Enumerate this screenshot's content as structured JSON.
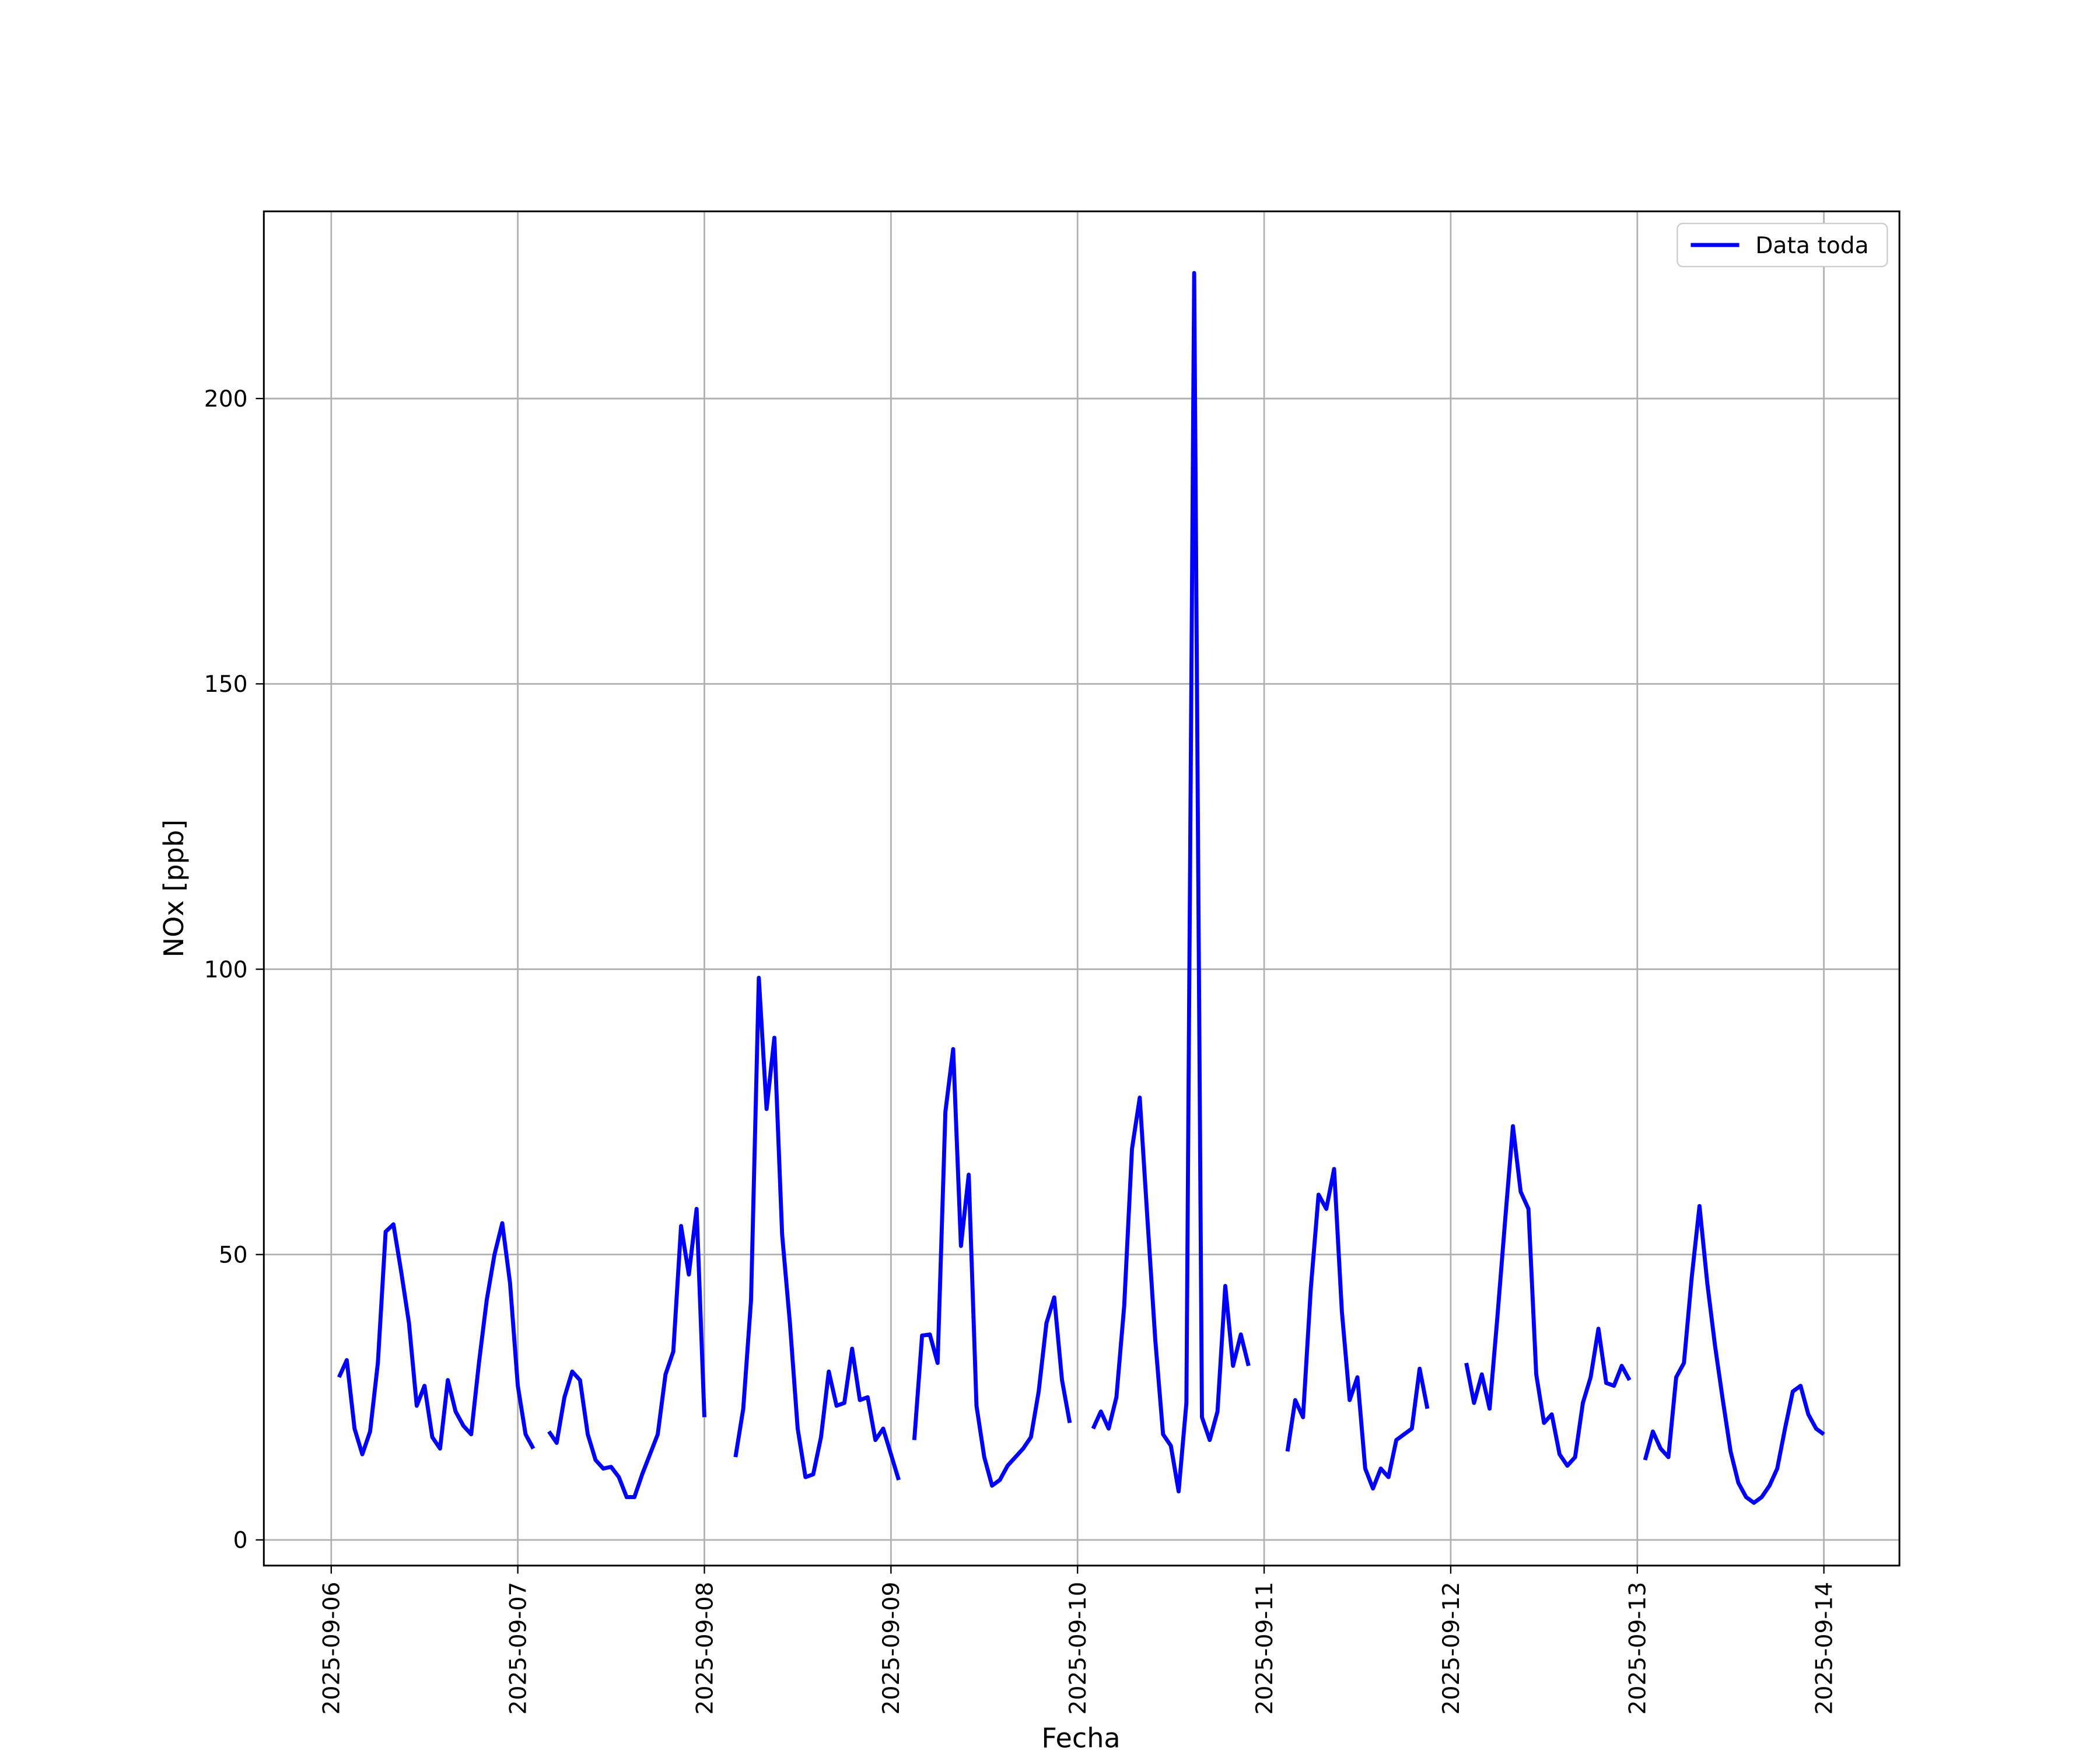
{
  "chart_data": {
    "type": "line",
    "xlabel": "Fecha",
    "ylabel": "NOx [ppb]",
    "x": [
      "2025-09-06 01:00",
      "2025-09-06 02:00",
      "2025-09-06 03:00",
      "2025-09-06 04:00",
      "2025-09-06 05:00",
      "2025-09-06 06:00",
      "2025-09-06 07:00",
      "2025-09-06 08:00",
      "2025-09-06 09:00",
      "2025-09-06 10:00",
      "2025-09-06 11:00",
      "2025-09-06 12:00",
      "2025-09-06 13:00",
      "2025-09-06 14:00",
      "2025-09-06 15:00",
      "2025-09-06 16:00",
      "2025-09-06 17:00",
      "2025-09-06 18:00",
      "2025-09-06 19:00",
      "2025-09-06 20:00",
      "2025-09-06 21:00",
      "2025-09-06 22:00",
      "2025-09-06 23:00",
      "2025-09-07 00:00",
      "2025-09-07 01:00",
      "2025-09-07 02:00",
      "2025-09-07 03:00",
      "2025-09-07 04:00",
      "2025-09-07 05:00",
      "2025-09-07 06:00",
      "2025-09-07 07:00",
      "2025-09-07 08:00",
      "2025-09-07 09:00",
      "2025-09-07 10:00",
      "2025-09-07 11:00",
      "2025-09-07 12:00",
      "2025-09-07 13:00",
      "2025-09-07 14:00",
      "2025-09-07 15:00",
      "2025-09-07 16:00",
      "2025-09-07 17:00",
      "2025-09-07 18:00",
      "2025-09-07 19:00",
      "2025-09-07 20:00",
      "2025-09-07 21:00",
      "2025-09-07 22:00",
      "2025-09-07 23:00",
      "2025-09-08 00:00",
      "2025-09-08 01:00",
      "2025-09-08 02:00",
      "2025-09-08 03:00",
      "2025-09-08 04:00",
      "2025-09-08 05:00",
      "2025-09-08 06:00",
      "2025-09-08 07:00",
      "2025-09-08 08:00",
      "2025-09-08 09:00",
      "2025-09-08 10:00",
      "2025-09-08 11:00",
      "2025-09-08 12:00",
      "2025-09-08 13:00",
      "2025-09-08 14:00",
      "2025-09-08 15:00",
      "2025-09-08 16:00",
      "2025-09-08 17:00",
      "2025-09-08 18:00",
      "2025-09-08 19:00",
      "2025-09-08 20:00",
      "2025-09-08 21:00",
      "2025-09-08 22:00",
      "2025-09-08 23:00",
      "2025-09-09 00:00",
      "2025-09-09 01:00",
      "2025-09-09 02:00",
      "2025-09-09 03:00",
      "2025-09-09 04:00",
      "2025-09-09 05:00",
      "2025-09-09 06:00",
      "2025-09-09 07:00",
      "2025-09-09 08:00",
      "2025-09-09 09:00",
      "2025-09-09 10:00",
      "2025-09-09 11:00",
      "2025-09-09 12:00",
      "2025-09-09 13:00",
      "2025-09-09 14:00",
      "2025-09-09 15:00",
      "2025-09-09 16:00",
      "2025-09-09 17:00",
      "2025-09-09 18:00",
      "2025-09-09 19:00",
      "2025-09-09 20:00",
      "2025-09-09 21:00",
      "2025-09-09 22:00",
      "2025-09-09 23:00",
      "2025-09-10 00:00",
      "2025-09-10 01:00",
      "2025-09-10 02:00",
      "2025-09-10 03:00",
      "2025-09-10 04:00",
      "2025-09-10 05:00",
      "2025-09-10 06:00",
      "2025-09-10 07:00",
      "2025-09-10 08:00",
      "2025-09-10 09:00",
      "2025-09-10 10:00",
      "2025-09-10 11:00",
      "2025-09-10 12:00",
      "2025-09-10 13:00",
      "2025-09-10 14:00",
      "2025-09-10 15:00",
      "2025-09-10 16:00",
      "2025-09-10 17:00",
      "2025-09-10 18:00",
      "2025-09-10 19:00",
      "2025-09-10 20:00",
      "2025-09-10 21:00",
      "2025-09-10 22:00",
      "2025-09-10 23:00",
      "2025-09-11 00:00",
      "2025-09-11 01:00",
      "2025-09-11 02:00",
      "2025-09-11 03:00",
      "2025-09-11 04:00",
      "2025-09-11 05:00",
      "2025-09-11 06:00",
      "2025-09-11 07:00",
      "2025-09-11 08:00",
      "2025-09-11 09:00",
      "2025-09-11 10:00",
      "2025-09-11 11:00",
      "2025-09-11 12:00",
      "2025-09-11 13:00",
      "2025-09-11 14:00",
      "2025-09-11 15:00",
      "2025-09-11 16:00",
      "2025-09-11 17:00",
      "2025-09-11 18:00",
      "2025-09-11 19:00",
      "2025-09-11 20:00",
      "2025-09-11 21:00",
      "2025-09-11 22:00",
      "2025-09-11 23:00",
      "2025-09-12 00:00",
      "2025-09-12 01:00",
      "2025-09-12 02:00",
      "2025-09-12 03:00",
      "2025-09-12 04:00",
      "2025-09-12 05:00",
      "2025-09-12 06:00",
      "2025-09-12 07:00",
      "2025-09-12 08:00",
      "2025-09-12 09:00",
      "2025-09-12 10:00",
      "2025-09-12 11:00",
      "2025-09-12 12:00",
      "2025-09-12 13:00",
      "2025-09-12 14:00",
      "2025-09-12 15:00",
      "2025-09-12 16:00",
      "2025-09-12 17:00",
      "2025-09-12 18:00",
      "2025-09-12 19:00",
      "2025-09-12 20:00",
      "2025-09-12 21:00",
      "2025-09-12 22:00",
      "2025-09-12 23:00",
      "2025-09-13 00:00",
      "2025-09-13 01:00",
      "2025-09-13 02:00",
      "2025-09-13 03:00",
      "2025-09-13 04:00",
      "2025-09-13 05:00",
      "2025-09-13 06:00",
      "2025-09-13 07:00",
      "2025-09-13 08:00",
      "2025-09-13 09:00",
      "2025-09-13 10:00",
      "2025-09-13 11:00",
      "2025-09-13 12:00",
      "2025-09-13 13:00",
      "2025-09-13 14:00",
      "2025-09-13 15:00",
      "2025-09-13 16:00",
      "2025-09-13 17:00",
      "2025-09-13 18:00",
      "2025-09-13 19:00",
      "2025-09-13 20:00",
      "2025-09-13 21:00",
      "2025-09-13 22:00",
      "2025-09-13 23:00",
      "2025-09-14 00:00"
    ],
    "series": [
      {
        "name": "Data toda",
        "color": "#0000ff",
        "values": [
          28.5,
          31.5,
          19.5,
          15,
          19,
          31,
          54,
          55.3,
          47,
          38,
          23.5,
          27,
          18,
          16,
          28,
          22.5,
          20,
          18.5,
          31,
          42,
          50,
          55.5,
          45,
          27,
          18.5,
          16,
          null,
          19,
          17,
          25,
          29.5,
          28,
          18.5,
          14,
          12.5,
          12.8,
          11,
          7.5,
          7.5,
          11.5,
          15,
          18.5,
          29,
          33,
          55,
          46.5,
          58,
          21.5,
          null,
          null,
          null,
          14.5,
          23,
          42,
          98.5,
          75.5,
          88,
          53.5,
          38,
          19.5,
          11,
          11.5,
          18,
          29.5,
          23.5,
          24,
          33.5,
          24.5,
          25,
          17.5,
          19.5,
          15,
          10.5,
          null,
          17.5,
          35.8,
          36,
          31,
          75,
          86,
          51.5,
          64,
          23.5,
          14.5,
          9.5,
          10.5,
          13,
          14.5,
          16,
          18,
          26,
          38,
          42.5,
          28,
          20.5,
          null,
          null,
          19.5,
          22.5,
          19.5,
          25,
          41,
          68.5,
          77.5,
          56,
          35,
          18.5,
          16.5,
          8.5,
          24,
          222,
          21.5,
          17.5,
          22.5,
          44.5,
          30.5,
          36,
          30.5,
          null,
          null,
          null,
          null,
          15.5,
          24.5,
          21.5,
          44,
          60.5,
          58,
          65,
          40,
          24.5,
          28.5,
          12.5,
          9,
          12.5,
          11,
          17.5,
          18.5,
          19.5,
          30,
          23,
          null,
          null,
          null,
          null,
          31,
          24,
          29,
          23,
          39,
          56,
          72.5,
          61,
          58,
          29,
          20.5,
          22,
          15,
          13,
          14.5,
          24,
          28.5,
          37,
          27.5,
          27,
          30.5,
          28,
          null,
          14,
          19,
          16,
          14.5,
          28.5,
          31,
          46,
          58.5,
          45,
          34,
          24.5,
          15.5,
          10,
          7.5,
          6.5,
          7.5,
          9.5,
          12.5,
          19.5,
          26,
          27,
          22,
          19.5,
          18.5
        ]
      }
    ],
    "xlim": [
      "2025-09-05 15:20",
      "2025-09-14 09:43"
    ],
    "xticks": [
      "2025-09-06",
      "2025-09-07",
      "2025-09-08",
      "2025-09-09",
      "2025-09-10",
      "2025-09-11",
      "2025-09-12",
      "2025-09-13",
      "2025-09-14"
    ],
    "ylim": [
      -4.5,
      232.8
    ],
    "yticks": [
      0,
      50,
      100,
      150,
      200
    ],
    "grid": true,
    "legend": "upper right"
  }
}
